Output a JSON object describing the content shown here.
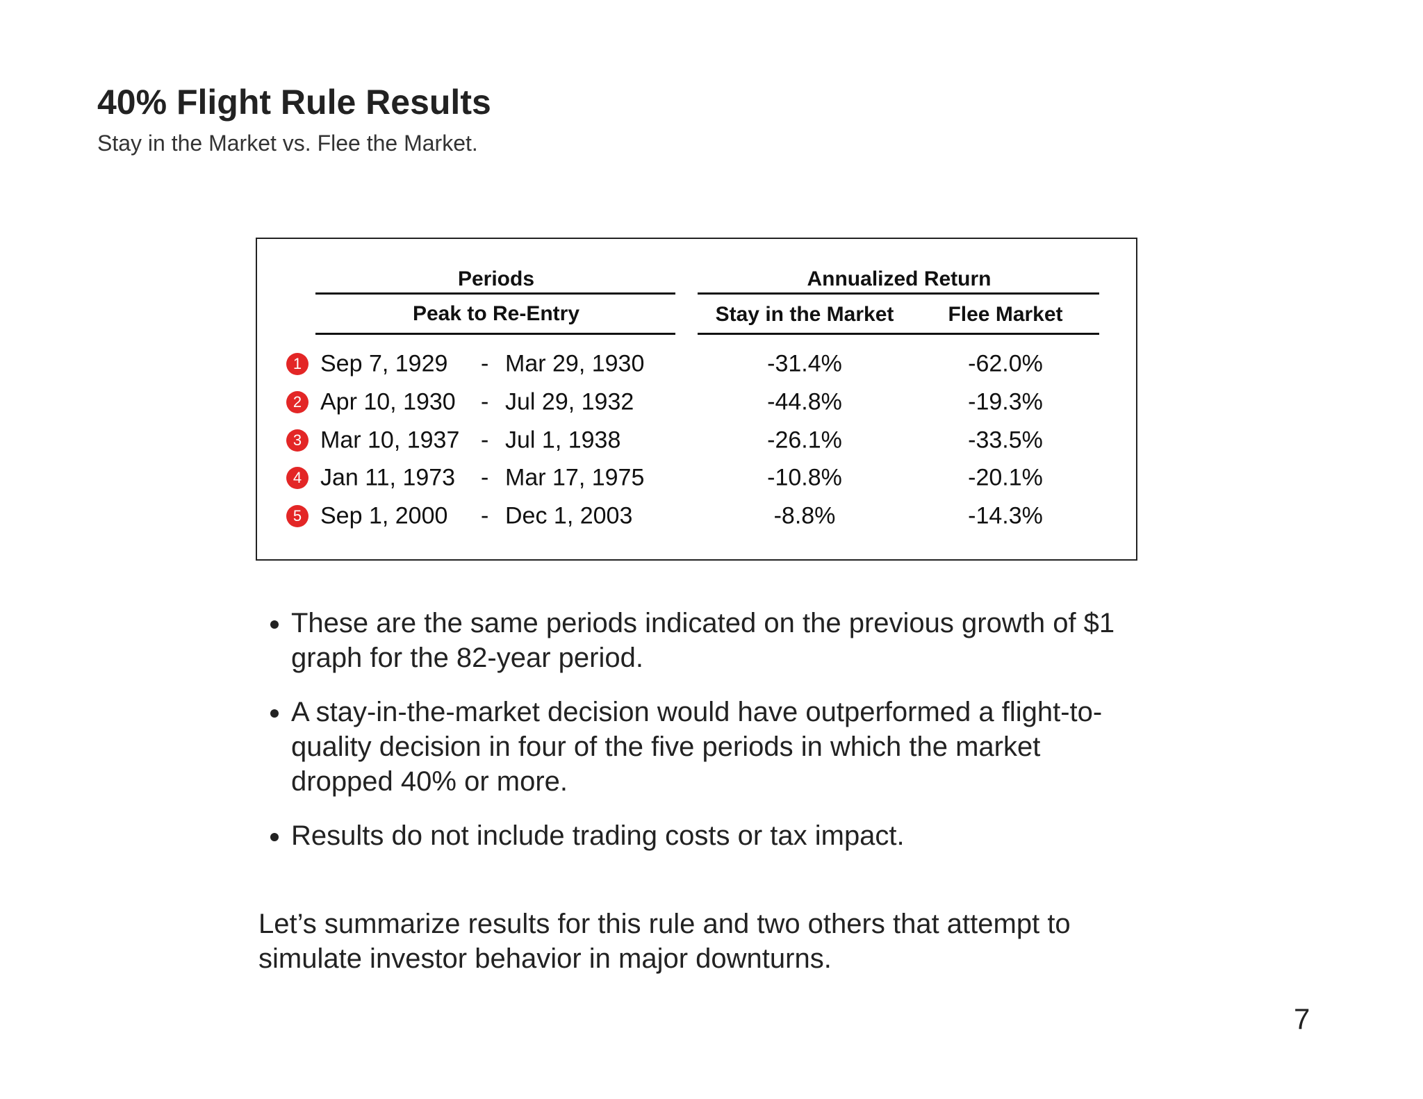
{
  "header": {
    "title": "40% Flight Rule Results",
    "subtitle": "Stay in the Market vs. Flee the Market."
  },
  "table": {
    "group_headers": [
      "Periods",
      "Annualized Return"
    ],
    "columns": [
      "Peak to Re-Entry",
      "Stay in the Market",
      "Flee Market"
    ],
    "rows": [
      {
        "marker": "1",
        "start": "Sep 7, 1929",
        "separator": "-",
        "end": "Mar 29, 1930",
        "stay": "-31.4%",
        "flee": "-62.0%"
      },
      {
        "marker": "2",
        "start": "Apr 10, 1930",
        "separator": "-",
        "end": "Jul 29, 1932",
        "stay": "-44.8%",
        "flee": "-19.3%"
      },
      {
        "marker": "3",
        "start": "Mar 10, 1937",
        "separator": "-",
        "end": "Jul 1, 1938",
        "stay": "-26.1%",
        "flee": "-33.5%"
      },
      {
        "marker": "4",
        "start": "Jan 11, 1973",
        "separator": "-",
        "end": "Mar 17, 1975",
        "stay": "-10.8%",
        "flee": "-20.1%"
      },
      {
        "marker": "5",
        "start": "Sep 1, 2000",
        "separator": "-",
        "end": "Dec 1, 2003",
        "stay": "-8.8%",
        "flee": "-14.3%"
      }
    ]
  },
  "bullets": [
    "These are the same periods indicated on the previous growth of $1 graph for the 82-year period.",
    "A stay-in-the-market decision would have outperformed a flight-to-quality decision in four of the five periods in which the market dropped 40% or more.",
    "Results do not include trading costs or tax impact."
  ],
  "closing": "Let’s summarize results for this rule and two others that attempt to simulate investor behavior in major downturns.",
  "page_number": "7"
}
